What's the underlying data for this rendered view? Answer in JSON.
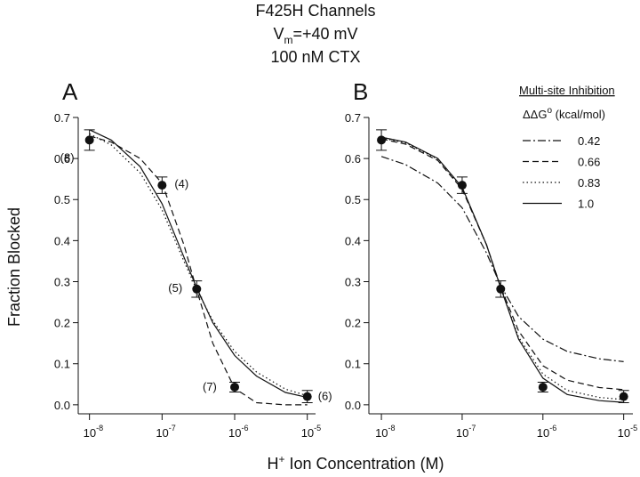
{
  "figure": {
    "title": "F425H Channels",
    "condition": {
      "text": "V",
      "sub": "m",
      "rest": "=+40 mV"
    },
    "subtitle": "100 nM CTX",
    "y_label": "Fraction Blocked",
    "x_label": {
      "text": "H",
      "sup": "+",
      "rest": " Ion Concentration (M)"
    },
    "legend_title": "Multi-site Inhibition",
    "legend_subtitle": {
      "text": "ΔΔG",
      "sup": "o",
      "rest": " (kcal/mol)"
    }
  },
  "chart_data": [
    {
      "type": "line",
      "panel_label": "A",
      "xscale": "log",
      "xlim": [
        7e-09,
        1.3e-05
      ],
      "ylim": [
        -0.022,
        0.7
      ],
      "xticks": [
        {
          "value": 1e-08,
          "label": "10",
          "exponent": "-8"
        },
        {
          "value": 1e-07,
          "label": "10",
          "exponent": "-7"
        },
        {
          "value": 1e-06,
          "label": "10",
          "exponent": "-6"
        },
        {
          "value": 1e-05,
          "label": "10",
          "exponent": "-5"
        }
      ],
      "yticks": [
        {
          "value": 0,
          "label": "0.0"
        },
        0.1,
        0.2,
        0.3,
        0.4,
        0.5,
        0.6,
        0.7
      ],
      "x": [
        1e-08,
        2e-08,
        5e-08,
        1e-07,
        2e-07,
        3e-07,
        5e-07,
        1e-06,
        2e-06,
        5e-06,
        1e-05
      ],
      "series": [
        {
          "color": "#111",
          "dash": "solid",
          "values": [
            0.67,
            0.645,
            0.58,
            0.49,
            0.36,
            0.285,
            0.2,
            0.12,
            0.07,
            0.03,
            0.018
          ]
        },
        {
          "color": "#111",
          "dash": "dotted",
          "values": [
            0.66,
            0.633,
            0.565,
            0.475,
            0.35,
            0.28,
            0.205,
            0.13,
            0.08,
            0.038,
            0.022
          ]
        },
        {
          "color": "#111",
          "dash": "dashed",
          "values": [
            0.655,
            0.64,
            0.6,
            0.54,
            0.39,
            0.28,
            0.15,
            0.04,
            0.005,
            0,
            0
          ]
        }
      ],
      "measured": {
        "color": "#111",
        "x": [
          1e-08,
          1e-07,
          3e-07,
          1e-06,
          1e-05
        ],
        "values": [
          0.645,
          0.535,
          0.282,
          0.043,
          0.02
        ],
        "errors": [
          0.025,
          0.02,
          0.02,
          0.012,
          0.015
        ],
        "point_labels": [
          "(8)",
          "(4)",
          "(5)",
          "(7)",
          "(6)"
        ]
      }
    },
    {
      "type": "line",
      "panel_label": "B",
      "xscale": "log",
      "xlim": [
        7e-09,
        1.3e-05
      ],
      "ylim": [
        -0.022,
        0.7
      ],
      "xticks": [
        {
          "value": 1e-08,
          "label": "10",
          "exponent": "-8"
        },
        {
          "value": 1e-07,
          "label": "10",
          "exponent": "-7"
        },
        {
          "value": 1e-06,
          "label": "10",
          "exponent": "-6"
        },
        {
          "value": 1e-05,
          "label": "10",
          "exponent": "-5"
        }
      ],
      "yticks": [
        {
          "value": 0,
          "label": "0.0"
        },
        0.1,
        0.2,
        0.3,
        0.4,
        0.5,
        0.6,
        0.7
      ],
      "x": [
        1e-08,
        2e-08,
        5e-08,
        1e-07,
        2e-07,
        3e-07,
        5e-07,
        1e-06,
        2e-06,
        5e-06,
        1e-05
      ],
      "series": [
        {
          "name": "0.42",
          "color": "#111",
          "dash": "dashdot",
          "values": [
            0.605,
            0.585,
            0.54,
            0.48,
            0.37,
            0.29,
            0.215,
            0.16,
            0.13,
            0.112,
            0.105
          ]
        },
        {
          "name": "0.66",
          "color": "#111",
          "dash": "dashed",
          "values": [
            0.648,
            0.635,
            0.595,
            0.525,
            0.39,
            0.287,
            0.18,
            0.095,
            0.06,
            0.042,
            0.037
          ]
        },
        {
          "name": "0.83",
          "color": "#111",
          "dash": "dotted",
          "values": [
            0.65,
            0.638,
            0.598,
            0.528,
            0.39,
            0.285,
            0.165,
            0.075,
            0.035,
            0.018,
            0.013
          ]
        },
        {
          "name": "1.0",
          "color": "#111",
          "dash": "solid",
          "values": [
            0.652,
            0.64,
            0.6,
            0.53,
            0.39,
            0.285,
            0.16,
            0.065,
            0.025,
            0.01,
            0.006
          ]
        }
      ],
      "measured": {
        "color": "#111",
        "x": [
          1e-08,
          1e-07,
          3e-07,
          1e-06,
          1e-05
        ],
        "values": [
          0.645,
          0.535,
          0.282,
          0.043,
          0.02
        ],
        "errors": [
          0.025,
          0.02,
          0.02,
          0.012,
          0.015
        ]
      }
    }
  ]
}
